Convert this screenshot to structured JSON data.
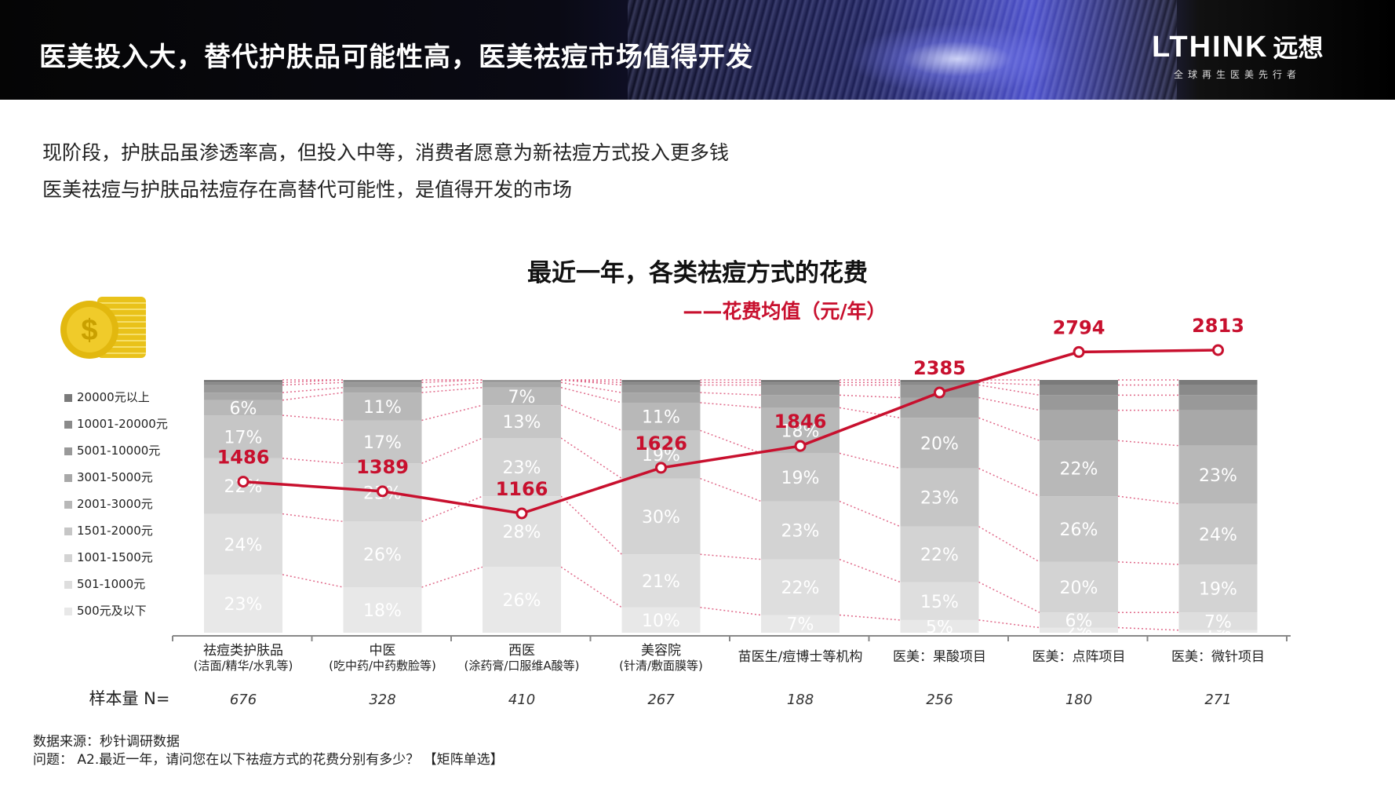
{
  "header": {
    "title": "医美投入大，替代护肤品可能性高，医美祛痘市场值得开发",
    "logo_brand": "LTHINK",
    "logo_brand_cn": "远想",
    "logo_tagline": "全球再生医美先行者"
  },
  "intro": {
    "line1": "现阶段，护肤品虽渗透率高，但投入中等，消费者愿意为新祛痘方式投入更多钱",
    "line2": "医美祛痘与护肤品祛痘存在高替代可能性，是值得开发的市场"
  },
  "footer": {
    "source": "数据来源：秒针调研数据",
    "question": "问题：  A2.最近一年，请问您在以下祛痘方式的花费分别有多少？ 【矩阵单选】"
  },
  "colors": {
    "line": "#c8102e",
    "connector": "#e06a8a",
    "segments": [
      "#e8e8e8",
      "#dedede",
      "#d3d3d3",
      "#c6c6c6",
      "#b8b8b8",
      "#a8a8a8",
      "#999999",
      "#8a8a8a",
      "#7a7a7a"
    ]
  },
  "icons": [
    "coin-stack-icon"
  ],
  "chart_data": {
    "type": "bar",
    "stacked": true,
    "title": "最近一年，各类祛痘方式的花费",
    "line_legend": "——花费均值（元/年）",
    "sample_label": "样本量 N=",
    "categories": [
      {
        "name": "祛痘类护肤品",
        "sub": "(洁面/精华/水乳等)"
      },
      {
        "name": "中医",
        "sub": "(吃中药/中药敷脸等)"
      },
      {
        "name": "西医",
        "sub": "(涂药膏/口服维A酸等)"
      },
      {
        "name": "美容院",
        "sub": "(针清/敷面膜等)"
      },
      {
        "name": "苗医生/痘博士等机构",
        "sub": ""
      },
      {
        "name": "医美：果酸项目",
        "sub": ""
      },
      {
        "name": "医美：点阵项目",
        "sub": ""
      },
      {
        "name": "医美：微针项目",
        "sub": ""
      }
    ],
    "sample_sizes": [
      "676",
      "328",
      "410",
      "267",
      "188",
      "256",
      "180",
      "271"
    ],
    "series": [
      {
        "name": "500元及以下",
        "values": [
          23,
          18,
          26,
          10,
          7,
          5,
          2,
          1
        ]
      },
      {
        "name": "501-1000元",
        "values": [
          24,
          26,
          28,
          21,
          22,
          15,
          6,
          7
        ]
      },
      {
        "name": "1001-1500元",
        "values": [
          22,
          23,
          23,
          30,
          23,
          22,
          20,
          19
        ]
      },
      {
        "name": "1501-2000元",
        "values": [
          17,
          17,
          13,
          19,
          19,
          23,
          26,
          24
        ]
      },
      {
        "name": "2001-3000元",
        "values": [
          6,
          11,
          7,
          11,
          18,
          20,
          22,
          23
        ]
      },
      {
        "name": "3001-5000元",
        "values": [
          3,
          2,
          2,
          4,
          5,
          8,
          12,
          14
        ]
      },
      {
        "name": "5001-10000元",
        "values": [
          3,
          2,
          1,
          3,
          4,
          5,
          6,
          6
        ]
      },
      {
        "name": "10001-20000元",
        "values": [
          1,
          1,
          0,
          1,
          1,
          1,
          4,
          4
        ]
      },
      {
        "name": "20000元以上",
        "values": [
          1,
          0,
          0,
          1,
          1,
          1,
          2,
          2
        ]
      }
    ],
    "shown_labels": [
      {
        "cat": 0,
        "series": [
          0,
          1,
          2,
          3,
          4
        ]
      },
      {
        "cat": 1,
        "series": [
          0,
          1,
          2,
          3,
          4
        ]
      },
      {
        "cat": 2,
        "series": [
          0,
          1,
          2,
          3,
          4
        ]
      },
      {
        "cat": 3,
        "series": [
          0,
          1,
          2,
          3,
          4
        ]
      },
      {
        "cat": 4,
        "series": [
          0,
          1,
          2,
          3,
          4
        ]
      },
      {
        "cat": 5,
        "series": [
          0,
          1,
          2,
          3,
          4
        ]
      },
      {
        "cat": 6,
        "series": [
          0,
          1,
          2,
          3,
          4
        ]
      },
      {
        "cat": 7,
        "series": [
          0,
          1,
          2,
          3,
          4
        ]
      }
    ],
    "line": {
      "name": "花费均值（元/年）",
      "values": [
        1486,
        1389,
        1166,
        1626,
        1846,
        2385,
        2794,
        2813
      ]
    },
    "legend_position": "left"
  }
}
